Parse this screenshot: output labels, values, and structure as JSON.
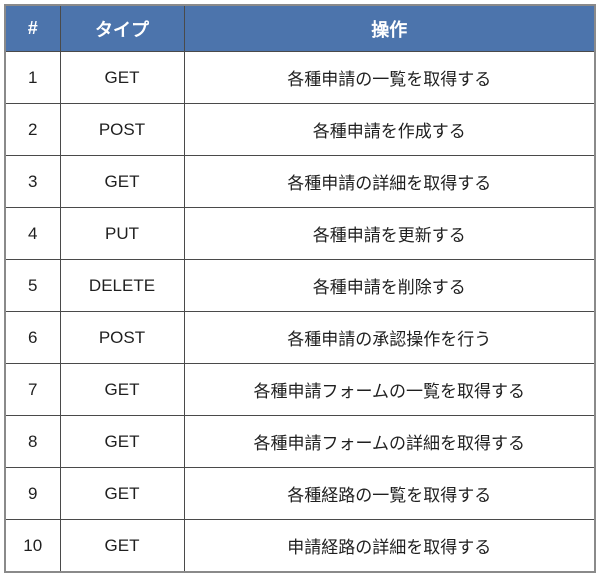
{
  "table": {
    "columns": [
      {
        "key": "num",
        "label": "#"
      },
      {
        "key": "type",
        "label": "タイプ"
      },
      {
        "key": "operation",
        "label": "操作"
      }
    ],
    "rows": [
      {
        "num": "1",
        "type": "GET",
        "operation": "各種申請の一覧を取得する"
      },
      {
        "num": "2",
        "type": "POST",
        "operation": "各種申請を作成する"
      },
      {
        "num": "3",
        "type": "GET",
        "operation": "各種申請の詳細を取得する"
      },
      {
        "num": "4",
        "type": "PUT",
        "operation": "各種申請を更新する"
      },
      {
        "num": "5",
        "type": "DELETE",
        "operation": "各種申請を削除する"
      },
      {
        "num": "6",
        "type": "POST",
        "operation": "各種申請の承認操作を行う"
      },
      {
        "num": "7",
        "type": "GET",
        "operation": "各種申請フォームの一覧を取得する"
      },
      {
        "num": "8",
        "type": "GET",
        "operation": "各種申請フォームの詳細を取得する"
      },
      {
        "num": "9",
        "type": "GET",
        "operation": "各種経路の一覧を取得する"
      },
      {
        "num": "10",
        "type": "GET",
        "operation": "申請経路の詳細を取得する"
      }
    ],
    "colors": {
      "header_bg": "#4c74ac",
      "header_text": "#ffffff",
      "body_text": "#1f1f1f",
      "inner_border": "#4a4a4a",
      "outer_border": "#8a8a8a"
    }
  },
  "chart_data": {
    "type": "table",
    "title": "",
    "columns": [
      "#",
      "タイプ",
      "操作"
    ],
    "rows": [
      [
        "1",
        "GET",
        "各種申請の一覧を取得する"
      ],
      [
        "2",
        "POST",
        "各種申請を作成する"
      ],
      [
        "3",
        "GET",
        "各種申請の詳細を取得する"
      ],
      [
        "4",
        "PUT",
        "各種申請を更新する"
      ],
      [
        "5",
        "DELETE",
        "各種申請を削除する"
      ],
      [
        "6",
        "POST",
        "各種申請の承認操作を行う"
      ],
      [
        "7",
        "GET",
        "各種申請フォームの一覧を取得する"
      ],
      [
        "8",
        "GET",
        "各種申請フォームの詳細を取得する"
      ],
      [
        "9",
        "GET",
        "各種経路の一覧を取得する"
      ],
      [
        "10",
        "GET",
        "申請経路の詳細を取得する"
      ]
    ]
  }
}
